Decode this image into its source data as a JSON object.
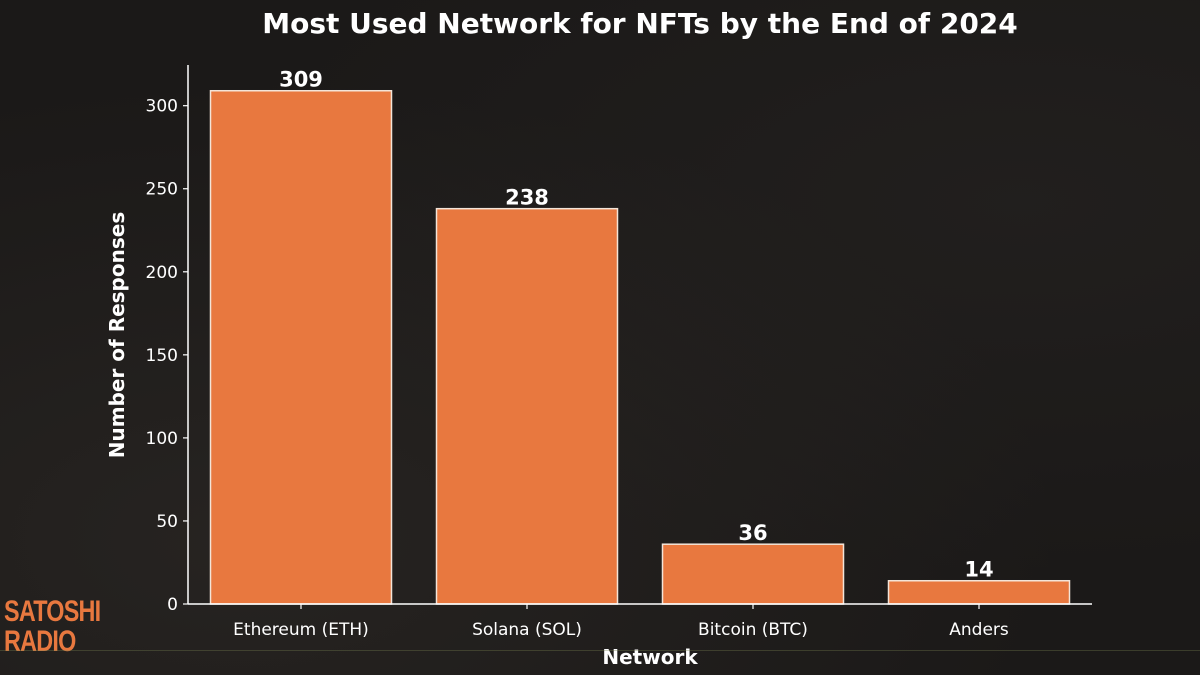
{
  "colors": {
    "bar": "#e8783f",
    "text": "#ffffff",
    "background": "#1b1918"
  },
  "logo": {
    "line1": "SATOSHI",
    "line2": "RADIO"
  },
  "chart_data": {
    "type": "bar",
    "title": "Most Used Network for NFTs by the End of 2024",
    "xlabel": "Network",
    "ylabel": "Number of Responses",
    "categories": [
      "Ethereum (ETH)",
      "Solana (SOL)",
      "Bitcoin (BTC)",
      "Anders"
    ],
    "values": [
      309,
      238,
      36,
      14
    ],
    "data_labels": [
      "309",
      "238",
      "36",
      "14"
    ],
    "yticks": [
      0,
      50,
      100,
      150,
      200,
      250,
      300
    ],
    "ylim": [
      0,
      324.5
    ],
    "grid": false,
    "legend": "none"
  }
}
